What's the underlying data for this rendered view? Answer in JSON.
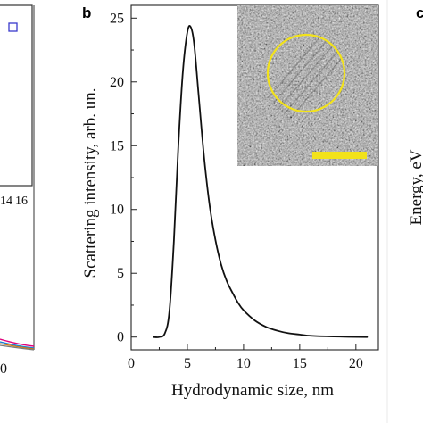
{
  "panels": {
    "left_fragment": {
      "tick_labels": [
        "14",
        "16"
      ],
      "bottom_tick_label": "0",
      "legend_marker_color": "#3a3acc",
      "curve_colors": [
        "#e0007a",
        "#1a7fd6",
        "#d07a10",
        "#7a7a7a"
      ]
    },
    "center": {
      "letter": "b"
    },
    "right_fragment": {
      "letter": "c",
      "axis_fragment": "Energy, eV"
    }
  },
  "chart_data": {
    "type": "line",
    "title": "",
    "xlabel": "Hydrodynamic size, nm",
    "ylabel": "Scattering intensity, arb. un.",
    "xlim": [
      0,
      22
    ],
    "ylim": [
      -1,
      26
    ],
    "xticks": [
      0,
      5,
      10,
      15,
      20
    ],
    "yticks": [
      0,
      5,
      10,
      15,
      20,
      25
    ],
    "grid": false,
    "line_color": "#111111",
    "series": [
      {
        "x": [
          2.0,
          2.5,
          3.0,
          3.4,
          3.8,
          4.2,
          4.6,
          5.0,
          5.3,
          5.6,
          6.0,
          6.5,
          7.0,
          7.5,
          8.0,
          8.5,
          9.0,
          9.5,
          10.0,
          11.0,
          12.0,
          13.0,
          14.0,
          15.0,
          16.0,
          18.0,
          21.0
        ],
        "y": [
          0.0,
          0.0,
          0.3,
          2.0,
          7.5,
          15.0,
          20.8,
          23.9,
          24.3,
          23.0,
          19.0,
          14.0,
          10.2,
          7.6,
          5.7,
          4.4,
          3.5,
          2.7,
          2.1,
          1.3,
          0.8,
          0.5,
          0.3,
          0.2,
          0.1,
          0.04,
          0.0
        ]
      }
    ],
    "inset": {
      "description_color_circle": "#f2e21a",
      "scale_bar_color": "#f2e21a"
    }
  }
}
